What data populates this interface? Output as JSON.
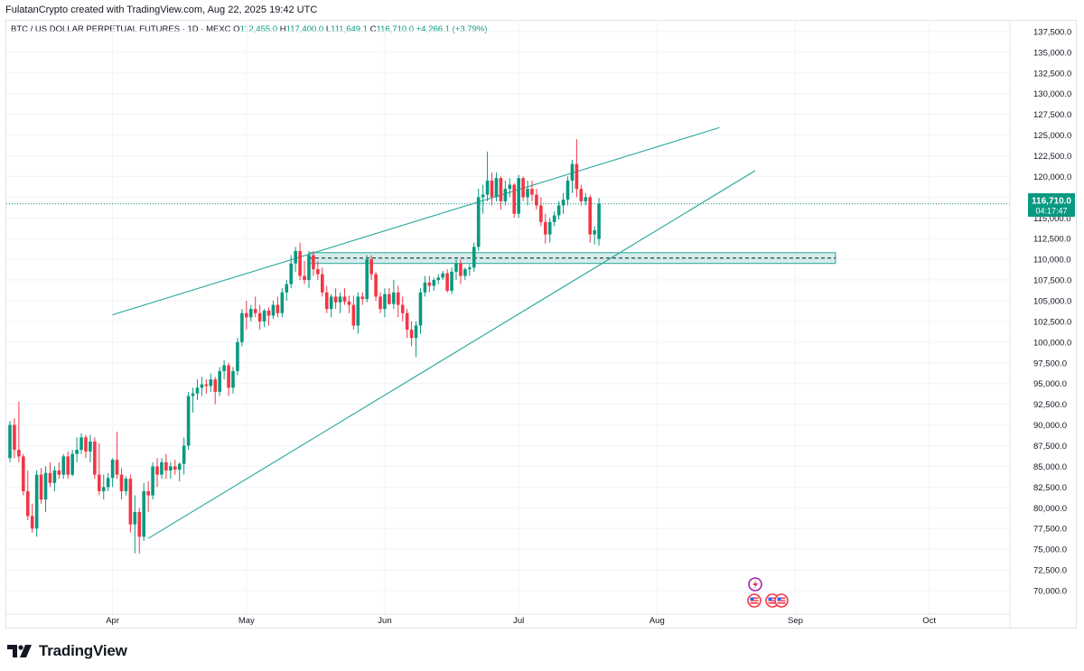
{
  "header": {
    "credit": "FulatanCrypto created with TradingView.com, Aug 22, 2025 19:42 UTC"
  },
  "legend": {
    "symbol": "BTC / US DOLLAR PERPETUAL FUTURES · 1D · MEXC",
    "o_label": "O",
    "o": "112,455.0",
    "h_label": "H",
    "h": "117,400.0",
    "l_label": "L",
    "l": "111,649.1",
    "c_label": "C",
    "c": "116,710.0",
    "change": "+4,266.1 (+3.79%)"
  },
  "price_tag": {
    "price": "116,710.0",
    "countdown": "04:17:47"
  },
  "footer": {
    "brand": "TradingView"
  },
  "colors": {
    "up": "#089981",
    "down": "#f23645",
    "trendline": "#26a69a",
    "zone_fill": "#b2dfdb"
  },
  "chart_data": {
    "type": "candlestick",
    "ylim": [
      68000,
      138500
    ],
    "y_ticks": [
      "70,000.0",
      "72,500.0",
      "75,000.0",
      "77,500.0",
      "80,000.0",
      "82,500.0",
      "85,000.0",
      "87,500.0",
      "90,000.0",
      "92,500.0",
      "95,000.0",
      "97,500.0",
      "100,000.0",
      "102,500.0",
      "105,000.0",
      "107,500.0",
      "110,000.0",
      "112,500.0",
      "115,000.0",
      "117,500.0",
      "120,000.0",
      "122,500.0",
      "125,000.0",
      "127,500.0",
      "130,000.0",
      "132,500.0",
      "135,000.0",
      "137,500.0"
    ],
    "x_ticks": [
      "Apr",
      "May",
      "Jun",
      "Jul",
      "Aug",
      "Sep",
      "Oct"
    ],
    "series": [
      {
        "start": "2025-03-09",
        "ohlc": [
          [
            86000,
            90500,
            85500,
            90000
          ],
          [
            90000,
            90800,
            86000,
            87000
          ],
          [
            87000,
            92800,
            85500,
            86200
          ],
          [
            86200,
            86500,
            81500,
            82000
          ],
          [
            82000,
            84500,
            78500,
            79000
          ],
          [
            79000,
            80500,
            77000,
            77500
          ],
          [
            77500,
            84500,
            76500,
            84000
          ],
          [
            84000,
            84800,
            80500,
            81000
          ],
          [
            81000,
            85000,
            79500,
            84200
          ],
          [
            84200,
            85500,
            82500,
            83000
          ],
          [
            83000,
            85000,
            82000,
            84500
          ],
          [
            84500,
            85500,
            83500,
            84000
          ],
          [
            84000,
            86500,
            83500,
            86200
          ],
          [
            86200,
            86800,
            83500,
            84000
          ],
          [
            84000,
            87000,
            83800,
            86500
          ],
          [
            86500,
            88500,
            85500,
            87000
          ],
          [
            87000,
            89000,
            86500,
            88500
          ],
          [
            88500,
            88800,
            86000,
            86800
          ],
          [
            86800,
            88800,
            85500,
            88000
          ],
          [
            88000,
            88500,
            83500,
            84000
          ],
          [
            84000,
            87800,
            81500,
            82000
          ],
          [
            82000,
            84000,
            81000,
            82500
          ],
          [
            82500,
            84200,
            82000,
            83600
          ],
          [
            83600,
            86000,
            82500,
            85800
          ],
          [
            85800,
            89200,
            83500,
            84000
          ],
          [
            84000,
            84800,
            81000,
            82000
          ],
          [
            82000,
            83800,
            81500,
            83500
          ],
          [
            83500,
            84000,
            77000,
            78000
          ],
          [
            78000,
            81500,
            74500,
            79500
          ],
          [
            79500,
            80000,
            74500,
            76500
          ],
          [
            76500,
            83000,
            76000,
            82000
          ],
          [
            82000,
            83200,
            79500,
            81500
          ],
          [
            81500,
            85500,
            81000,
            85000
          ],
          [
            85000,
            86000,
            82500,
            84000
          ],
          [
            84000,
            86000,
            83500,
            85500
          ],
          [
            85500,
            86500,
            83500,
            84500
          ],
          [
            84500,
            85500,
            83500,
            85000
          ],
          [
            85000,
            85800,
            84000,
            84600
          ],
          [
            84600,
            85500,
            83200,
            85300
          ],
          [
            85300,
            88500,
            84000,
            87500
          ],
          [
            87500,
            94000,
            87000,
            93500
          ],
          [
            93500,
            94500,
            91500,
            93800
          ],
          [
            93800,
            95500,
            93000,
            94500
          ],
          [
            94500,
            95800,
            93500,
            94900
          ],
          [
            94900,
            95500,
            93800,
            94700
          ],
          [
            94700,
            96200,
            94000,
            95500
          ],
          [
            95500,
            95800,
            92500,
            94000
          ],
          [
            94000,
            97000,
            93500,
            96500
          ],
          [
            96500,
            97800,
            95500,
            97200
          ],
          [
            97200,
            97500,
            93500,
            94500
          ],
          [
            94500,
            97000,
            93800,
            96500
          ],
          [
            96500,
            100500,
            96000,
            100000
          ],
          [
            100000,
            104000,
            99500,
            103500
          ],
          [
            103500,
            105000,
            101500,
            103000
          ],
          [
            103000,
            104500,
            102500,
            104000
          ],
          [
            104000,
            105500,
            103000,
            103500
          ],
          [
            103500,
            104500,
            101500,
            102500
          ],
          [
            102500,
            104000,
            101800,
            103800
          ],
          [
            103800,
            104200,
            102000,
            103200
          ],
          [
            103200,
            105000,
            102800,
            104500
          ],
          [
            104500,
            105500,
            103000,
            103500
          ],
          [
            103500,
            106500,
            103000,
            106000
          ],
          [
            106000,
            107500,
            105000,
            107000
          ],
          [
            107000,
            110500,
            106500,
            109500
          ],
          [
            109500,
            111500,
            108500,
            111000
          ],
          [
            111000,
            112000,
            107500,
            108000
          ],
          [
            108000,
            109800,
            107000,
            107500
          ],
          [
            107500,
            111000,
            106500,
            110500
          ],
          [
            110500,
            111000,
            108000,
            108800
          ],
          [
            108800,
            109800,
            107500,
            108200
          ],
          [
            108200,
            109000,
            105500,
            106000
          ],
          [
            106000,
            106800,
            103500,
            104000
          ],
          [
            104000,
            105800,
            103000,
            105500
          ],
          [
            105500,
            106500,
            104000,
            104800
          ],
          [
            104800,
            106000,
            103500,
            105500
          ],
          [
            105500,
            106500,
            104500,
            104900
          ],
          [
            104900,
            105600,
            103500,
            104500
          ],
          [
            104500,
            105600,
            101500,
            102000
          ],
          [
            102000,
            106000,
            101000,
            105500
          ],
          [
            105500,
            106000,
            104500,
            105200
          ],
          [
            105200,
            110500,
            104800,
            110000
          ],
          [
            110000,
            110500,
            107500,
            108200
          ],
          [
            108200,
            108500,
            105000,
            105500
          ],
          [
            105500,
            106000,
            103500,
            104000
          ],
          [
            104000,
            106500,
            103000,
            105800
          ],
          [
            105800,
            106500,
            104500,
            104600
          ],
          [
            104600,
            107500,
            104000,
            106000
          ],
          [
            106000,
            106800,
            103000,
            104500
          ],
          [
            104500,
            105500,
            102500,
            103500
          ],
          [
            103500,
            104000,
            100500,
            101500
          ],
          [
            101500,
            102500,
            99500,
            100500
          ],
          [
            100500,
            102500,
            98200,
            102000
          ],
          [
            102000,
            106500,
            101000,
            106000
          ],
          [
            106000,
            108000,
            105500,
            107200
          ],
          [
            107200,
            108000,
            106000,
            106800
          ],
          [
            106800,
            107800,
            106200,
            107500
          ],
          [
            107500,
            108200,
            107000,
            107800
          ],
          [
            107800,
            108600,
            107500,
            108300
          ],
          [
            108300,
            108800,
            106000,
            106200
          ],
          [
            106200,
            109000,
            105800,
            108500
          ],
          [
            108500,
            110000,
            107500,
            109500
          ],
          [
            109500,
            110000,
            107000,
            108000
          ],
          [
            108000,
            109000,
            107500,
            108800
          ],
          [
            108800,
            109400,
            108000,
            109000
          ],
          [
            109000,
            112000,
            108500,
            111500
          ],
          [
            111500,
            118500,
            111000,
            117500
          ],
          [
            117500,
            119000,
            115500,
            117800
          ],
          [
            117800,
            123000,
            117000,
            119500
          ],
          [
            119500,
            120500,
            116500,
            117500
          ],
          [
            117500,
            120500,
            117000,
            119800
          ],
          [
            119800,
            120000,
            116000,
            117000
          ],
          [
            117000,
            119500,
            116500,
            118500
          ],
          [
            118500,
            119800,
            117500,
            119000
          ],
          [
            119000,
            119200,
            115000,
            115500
          ],
          [
            115500,
            120200,
            115000,
            119800
          ],
          [
            119800,
            120000,
            117000,
            117500
          ],
          [
            117500,
            119500,
            116500,
            118500
          ],
          [
            118500,
            119500,
            117000,
            117800
          ],
          [
            117800,
            118500,
            116000,
            116500
          ],
          [
            116500,
            117500,
            114000,
            114500
          ],
          [
            114500,
            115500,
            111900,
            113000
          ],
          [
            113000,
            115000,
            112000,
            114500
          ],
          [
            114500,
            115800,
            114000,
            115300
          ],
          [
            115300,
            117000,
            114800,
            116500
          ],
          [
            116500,
            118000,
            115500,
            117200
          ],
          [
            117200,
            120000,
            116500,
            119500
          ],
          [
            119500,
            122000,
            118000,
            121500
          ],
          [
            121500,
            124500,
            117500,
            118500
          ],
          [
            118500,
            119000,
            116500,
            117000
          ],
          [
            117000,
            118000,
            116500,
            117500
          ],
          [
            117500,
            117800,
            112000,
            113000
          ],
          [
            113000,
            114000,
            111800,
            113500
          ],
          [
            112455,
            117400,
            111649.1,
            116710
          ]
        ]
      }
    ],
    "annotations": {
      "support_zone": [
        109500,
        110800
      ],
      "dashed_level": 110150,
      "upper_trendline": [
        [
          "2025-04-01",
          103300
        ],
        [
          "2025-08-15",
          125900
        ]
      ],
      "lower_trendline": [
        [
          "2025-04-09",
          76300
        ],
        [
          "2025-08-23",
          120700
        ]
      ]
    }
  }
}
